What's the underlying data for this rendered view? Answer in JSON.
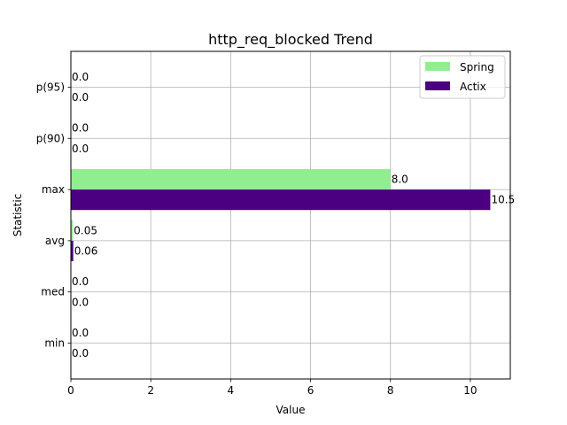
{
  "chart_data": {
    "type": "bar",
    "orientation": "horizontal",
    "title": "http_req_blocked Trend",
    "xlabel": "Value",
    "ylabel": "Statistic",
    "categories": [
      "min",
      "med",
      "avg",
      "max",
      "p(90)",
      "p(95)"
    ],
    "series": [
      {
        "name": "Spring",
        "color": "#90ee90",
        "values": [
          0.0,
          0.0,
          0.05,
          8.0,
          0.0,
          0.0
        ],
        "labels": [
          "0.0",
          "0.0",
          "0.05",
          "8.0",
          "0.0",
          "0.0"
        ]
      },
      {
        "name": "Actix",
        "color": "#4b0082",
        "values": [
          0.0,
          0.0,
          0.06,
          10.5,
          0.0,
          0.0
        ],
        "labels": [
          "0.0",
          "0.0",
          "0.06",
          "10.5",
          "0.0",
          "0.0"
        ]
      }
    ],
    "xlim": [
      0,
      11
    ],
    "xticks": [
      0,
      2,
      4,
      6,
      8,
      10
    ],
    "grid": true,
    "legend": "top-right"
  }
}
